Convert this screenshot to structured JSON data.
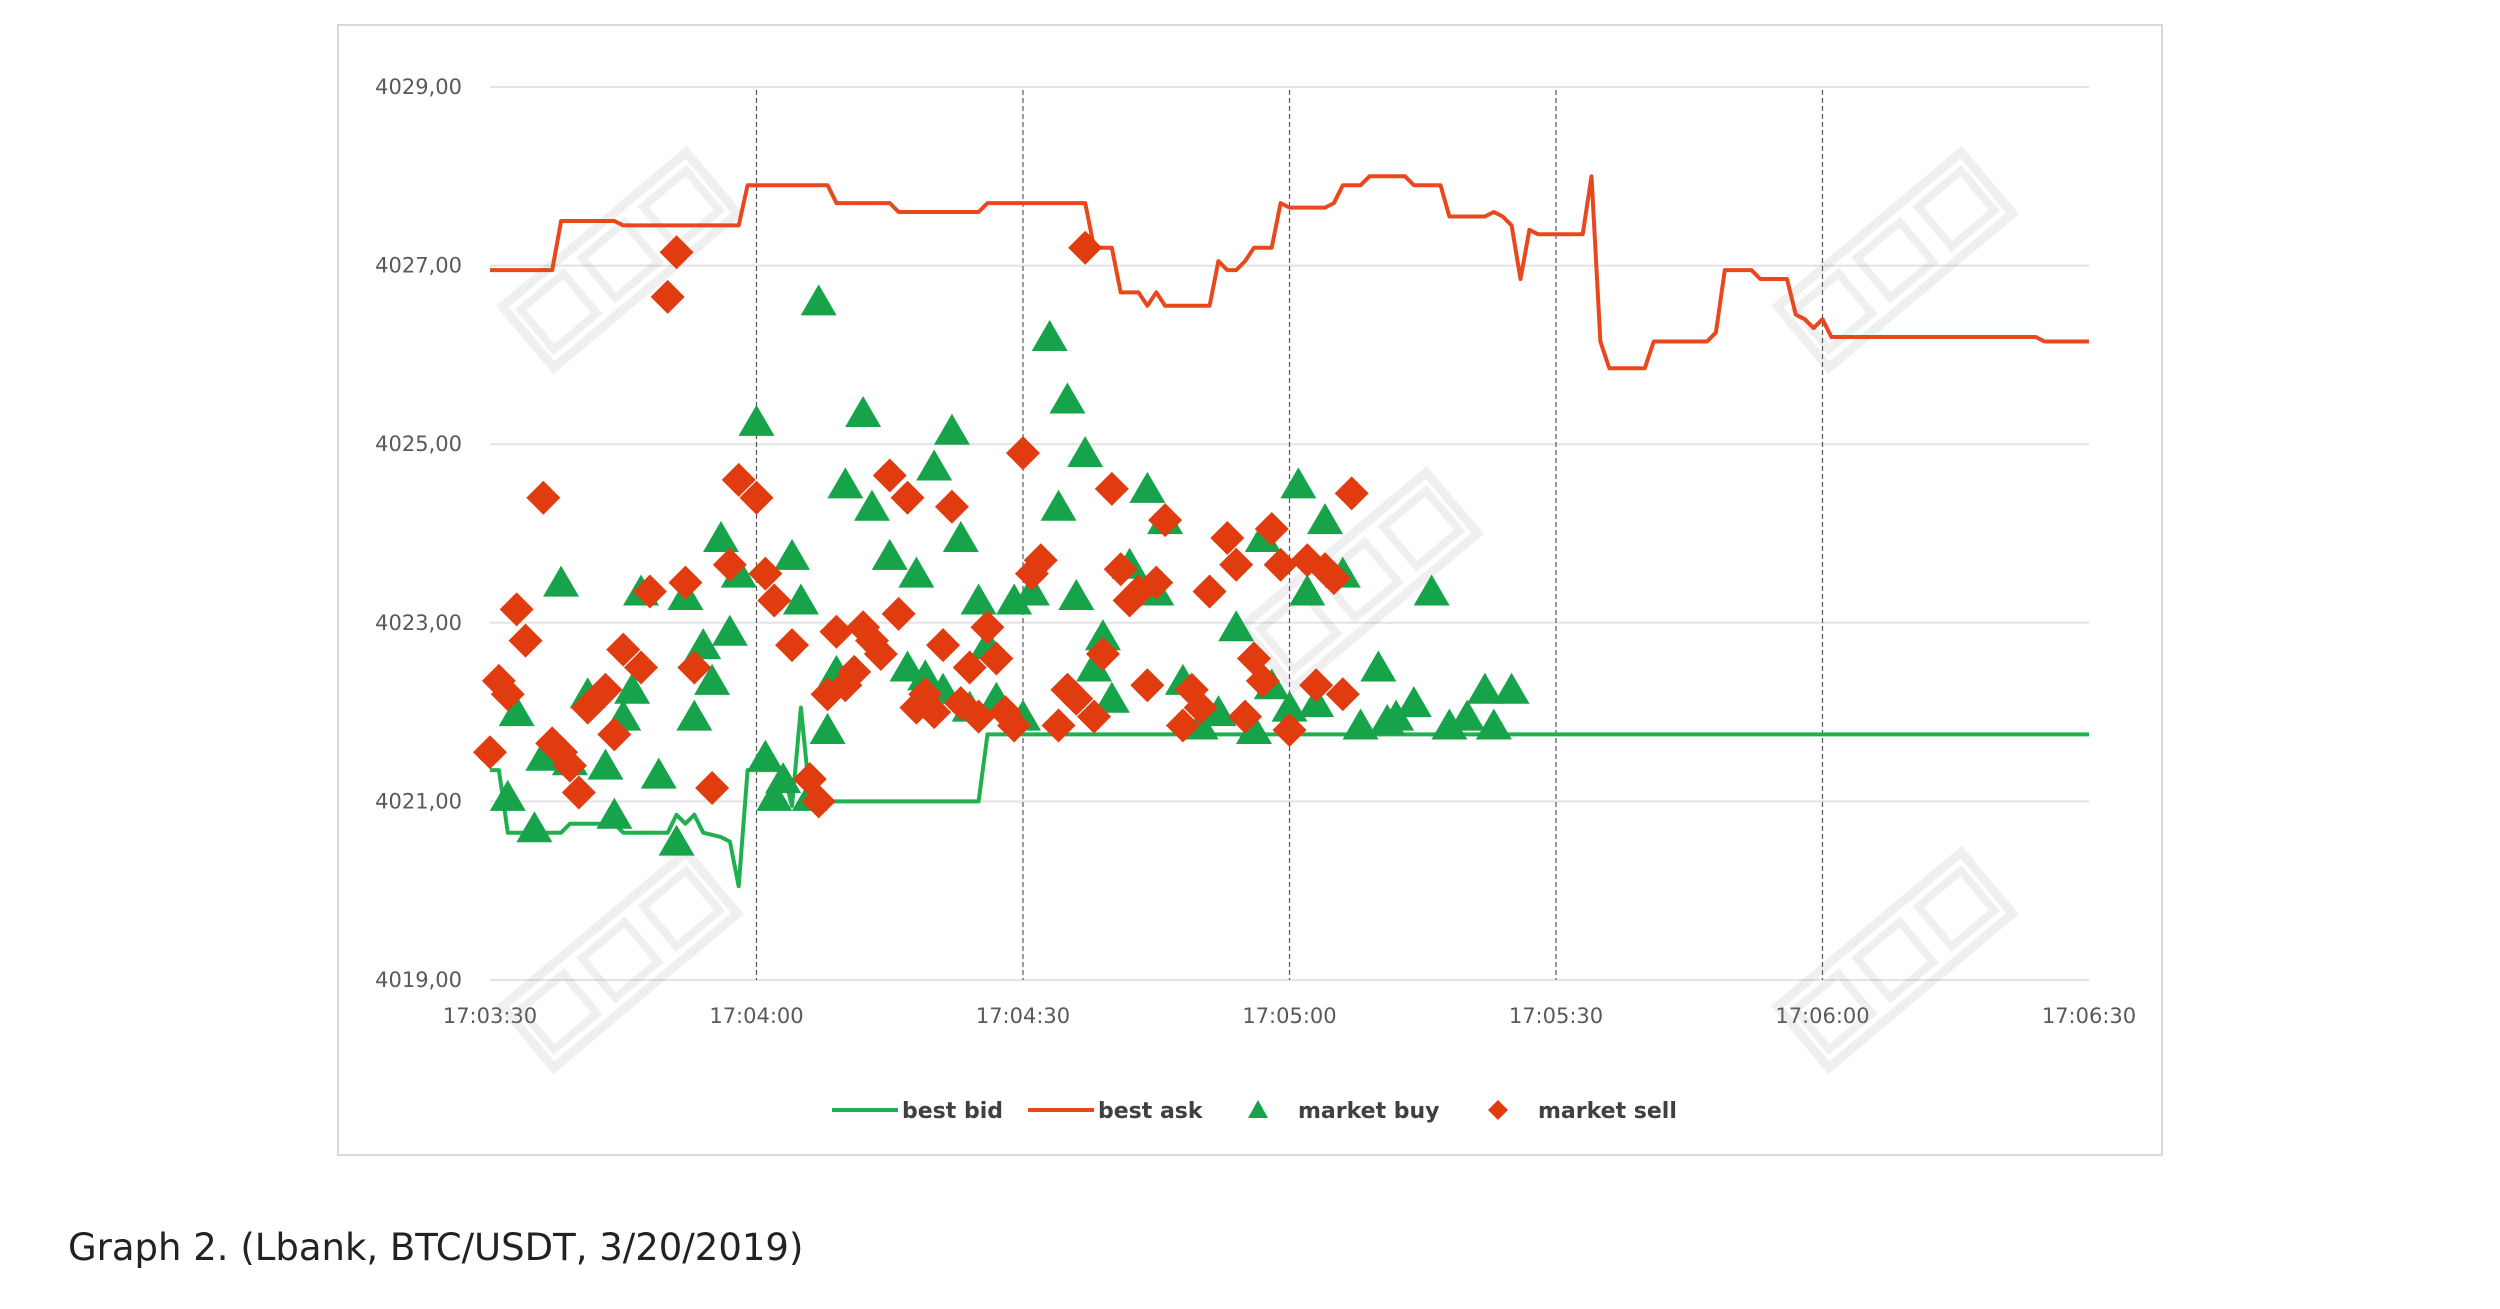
{
  "caption": "Graph 2. (Lbank, BTC/USDT, 3/20/2019)",
  "chart_data": {
    "type": "line",
    "title": "",
    "xlabel": "",
    "ylabel": "",
    "ylim": [
      4019,
      4029
    ],
    "y_ticks": [
      "4029,00",
      "4027,00",
      "4025,00",
      "4023,00",
      "4021,00",
      "4019,00"
    ],
    "y_tick_values": [
      4029,
      4027,
      4025,
      4023,
      4021,
      4019
    ],
    "xlim": [
      "17:03:30",
      "17:06:30"
    ],
    "x_ticks": [
      "17:03:30",
      "17:04:00",
      "17:04:30",
      "17:05:00",
      "17:05:30",
      "17:06:00",
      "17:06:30"
    ],
    "grid": "horizontal major gridlines, dashed vertical lines at 30 s ticks",
    "legend_position": "bottom",
    "colors": {
      "bid": "#1fb050",
      "ask": "#e8481c",
      "buy": "#16a34a",
      "sell": "#e03c10"
    },
    "series": [
      {
        "name": "best bid",
        "kind": "line",
        "color": "#1fb050",
        "points": [
          [
            "17:03:30",
            4021.35
          ],
          [
            "17:03:31",
            4021.35
          ],
          [
            "17:03:32",
            4020.65
          ],
          [
            "17:03:38",
            4020.65
          ],
          [
            "17:03:39",
            4020.75
          ],
          [
            "17:03:44",
            4020.75
          ],
          [
            "17:03:45",
            4020.65
          ],
          [
            "17:03:50",
            4020.65
          ],
          [
            "17:03:51",
            4020.85
          ],
          [
            "17:03:52",
            4020.75
          ],
          [
            "17:03:53",
            4020.85
          ],
          [
            "17:03:54",
            4020.65
          ],
          [
            "17:03:56",
            4020.6
          ],
          [
            "17:03:57",
            4020.55
          ],
          [
            "17:03:58",
            4020.05
          ],
          [
            "17:03:59",
            4021.35
          ],
          [
            "17:04:03",
            4021.35
          ],
          [
            "17:04:04",
            4020.95
          ],
          [
            "17:04:05",
            4022.05
          ],
          [
            "17:04:06",
            4021.05
          ],
          [
            "17:04:07",
            4021.0
          ],
          [
            "17:04:24",
            4021.0
          ],
          [
            "17:04:25",
            4021.0
          ],
          [
            "17:04:26",
            4021.75
          ],
          [
            "17:06:30",
            4021.75
          ]
        ]
      },
      {
        "name": "best ask",
        "kind": "line",
        "color": "#e8481c",
        "points": [
          [
            "17:03:30",
            4026.95
          ],
          [
            "17:03:37",
            4026.95
          ],
          [
            "17:03:38",
            4027.5
          ],
          [
            "17:03:44",
            4027.5
          ],
          [
            "17:03:45",
            4027.45
          ],
          [
            "17:03:58",
            4027.45
          ],
          [
            "17:03:59",
            4027.9
          ],
          [
            "17:04:08",
            4027.9
          ],
          [
            "17:04:09",
            4027.7
          ],
          [
            "17:04:15",
            4027.7
          ],
          [
            "17:04:16",
            4027.6
          ],
          [
            "17:04:25",
            4027.6
          ],
          [
            "17:04:26",
            4027.7
          ],
          [
            "17:04:37",
            4027.7
          ],
          [
            "17:04:38",
            4027.2
          ],
          [
            "17:04:40",
            4027.2
          ],
          [
            "17:04:41",
            4026.7
          ],
          [
            "17:04:43",
            4026.7
          ],
          [
            "17:04:44",
            4026.55
          ],
          [
            "17:04:45",
            4026.7
          ],
          [
            "17:04:46",
            4026.55
          ],
          [
            "17:04:51",
            4026.55
          ],
          [
            "17:04:52",
            4027.05
          ],
          [
            "17:04:53",
            4026.95
          ],
          [
            "17:04:54",
            4026.95
          ],
          [
            "17:04:55",
            4027.05
          ],
          [
            "17:04:56",
            4027.2
          ],
          [
            "17:04:58",
            4027.2
          ],
          [
            "17:04:59",
            4027.7
          ],
          [
            "17:05:00",
            4027.65
          ],
          [
            "17:05:04",
            4027.65
          ],
          [
            "17:05:05",
            4027.7
          ],
          [
            "17:05:06",
            4027.9
          ],
          [
            "17:05:08",
            4027.9
          ],
          [
            "17:05:09",
            4028.0
          ],
          [
            "17:05:13",
            4028.0
          ],
          [
            "17:05:14",
            4027.9
          ],
          [
            "17:05:17",
            4027.9
          ],
          [
            "17:05:18",
            4027.55
          ],
          [
            "17:05:22",
            4027.55
          ],
          [
            "17:05:23",
            4027.6
          ],
          [
            "17:05:24",
            4027.55
          ],
          [
            "17:05:25",
            4027.45
          ],
          [
            "17:05:26",
            4026.85
          ],
          [
            "17:05:27",
            4027.4
          ],
          [
            "17:05:28",
            4027.35
          ],
          [
            "17:05:33",
            4027.35
          ],
          [
            "17:05:34",
            4028.0
          ],
          [
            "17:05:35",
            4026.15
          ],
          [
            "17:05:36",
            4025.85
          ],
          [
            "17:05:40",
            4025.85
          ],
          [
            "17:05:41",
            4026.15
          ],
          [
            "17:05:47",
            4026.15
          ],
          [
            "17:05:48",
            4026.25
          ],
          [
            "17:05:49",
            4026.95
          ],
          [
            "17:05:52",
            4026.95
          ],
          [
            "17:05:53",
            4026.85
          ],
          [
            "17:05:56",
            4026.85
          ],
          [
            "17:05:57",
            4026.45
          ],
          [
            "17:05:58",
            4026.4
          ],
          [
            "17:05:59",
            4026.3
          ],
          [
            "17:06:00",
            4026.4
          ],
          [
            "17:06:01",
            4026.2
          ],
          [
            "17:06:24",
            4026.2
          ],
          [
            "17:06:25",
            4026.15
          ],
          [
            "17:06:30",
            4026.15
          ]
        ]
      },
      {
        "name": "market buy",
        "kind": "scatter",
        "marker": "triangle",
        "color": "#16a34a",
        "points": [
          [
            "17:03:32",
            4021.05
          ],
          [
            "17:03:33",
            4022.0
          ],
          [
            "17:03:35",
            4020.7
          ],
          [
            "17:03:36",
            4021.5
          ],
          [
            "17:03:38",
            4023.45
          ],
          [
            "17:03:39",
            4021.45
          ],
          [
            "17:03:41",
            4022.2
          ],
          [
            "17:03:43",
            4021.4
          ],
          [
            "17:03:44",
            4020.85
          ],
          [
            "17:03:45",
            4021.95
          ],
          [
            "17:03:46",
            4022.25
          ],
          [
            "17:03:47",
            4023.35
          ],
          [
            "17:03:49",
            4021.3
          ],
          [
            "17:03:51",
            4020.55
          ],
          [
            "17:03:52",
            4023.3
          ],
          [
            "17:03:53",
            4021.95
          ],
          [
            "17:03:54",
            4022.75
          ],
          [
            "17:03:55",
            4022.35
          ],
          [
            "17:03:56",
            4023.95
          ],
          [
            "17:03:57",
            4022.9
          ],
          [
            "17:03:58",
            4023.55
          ],
          [
            "17:04:00",
            4025.25
          ],
          [
            "17:04:01",
            4021.5
          ],
          [
            "17:04:02",
            4021.05
          ],
          [
            "17:04:03",
            4021.25
          ],
          [
            "17:04:04",
            4023.75
          ],
          [
            "17:04:05",
            4023.25
          ],
          [
            "17:04:06",
            4021.05
          ],
          [
            "17:04:07",
            4026.6
          ],
          [
            "17:04:08",
            4021.8
          ],
          [
            "17:04:09",
            4022.45
          ],
          [
            "17:04:10",
            4024.55
          ],
          [
            "17:04:12",
            4025.35
          ],
          [
            "17:04:13",
            4024.3
          ],
          [
            "17:04:15",
            4023.75
          ],
          [
            "17:04:17",
            4022.5
          ],
          [
            "17:04:18",
            4023.55
          ],
          [
            "17:04:19",
            4022.4
          ],
          [
            "17:04:20",
            4024.75
          ],
          [
            "17:04:21",
            4022.25
          ],
          [
            "17:04:22",
            4025.15
          ],
          [
            "17:04:23",
            4023.95
          ],
          [
            "17:04:24",
            4022.05
          ],
          [
            "17:04:25",
            4023.25
          ],
          [
            "17:04:26",
            4022.75
          ],
          [
            "17:04:27",
            4022.15
          ],
          [
            "17:04:29",
            4023.25
          ],
          [
            "17:04:30",
            4021.95
          ],
          [
            "17:04:31",
            4023.35
          ],
          [
            "17:04:33",
            4026.2
          ],
          [
            "17:04:34",
            4024.3
          ],
          [
            "17:04:35",
            4025.5
          ],
          [
            "17:04:36",
            4023.3
          ],
          [
            "17:04:37",
            4024.9
          ],
          [
            "17:04:38",
            4022.5
          ],
          [
            "17:04:39",
            4022.85
          ],
          [
            "17:04:40",
            4022.15
          ],
          [
            "17:04:42",
            4023.65
          ],
          [
            "17:04:44",
            4024.5
          ],
          [
            "17:04:45",
            4023.35
          ],
          [
            "17:04:46",
            4024.15
          ],
          [
            "17:04:48",
            4022.35
          ],
          [
            "17:04:50",
            4021.85
          ],
          [
            "17:04:52",
            4022.0
          ],
          [
            "17:04:54",
            4022.95
          ],
          [
            "17:04:56",
            4021.8
          ],
          [
            "17:04:57",
            4023.95
          ],
          [
            "17:04:58",
            4022.3
          ],
          [
            "17:05:00",
            4022.05
          ],
          [
            "17:05:01",
            4024.55
          ],
          [
            "17:05:02",
            4023.35
          ],
          [
            "17:05:03",
            4022.1
          ],
          [
            "17:05:04",
            4024.15
          ],
          [
            "17:05:06",
            4023.55
          ],
          [
            "17:05:08",
            4021.85
          ],
          [
            "17:05:10",
            4022.5
          ],
          [
            "17:05:11",
            4021.9
          ],
          [
            "17:05:12",
            4021.95
          ],
          [
            "17:05:14",
            4022.1
          ],
          [
            "17:05:16",
            4023.35
          ],
          [
            "17:05:18",
            4021.85
          ],
          [
            "17:05:20",
            4021.95
          ],
          [
            "17:05:22",
            4022.25
          ],
          [
            "17:05:23",
            4021.85
          ],
          [
            "17:05:25",
            4022.25
          ]
        ]
      },
      {
        "name": "market sell",
        "kind": "scatter",
        "marker": "diamond",
        "color": "#e03c10",
        "points": [
          [
            "17:03:30",
            4021.55
          ],
          [
            "17:03:31",
            4022.35
          ],
          [
            "17:03:32",
            4022.2
          ],
          [
            "17:03:33",
            4023.15
          ],
          [
            "17:03:34",
            4022.8
          ],
          [
            "17:03:36",
            4024.4
          ],
          [
            "17:03:37",
            4021.65
          ],
          [
            "17:03:38",
            4021.55
          ],
          [
            "17:03:39",
            4021.4
          ],
          [
            "17:03:40",
            4021.1
          ],
          [
            "17:03:41",
            4022.05
          ],
          [
            "17:03:42",
            4022.15
          ],
          [
            "17:03:43",
            4022.25
          ],
          [
            "17:03:44",
            4021.75
          ],
          [
            "17:03:45",
            4022.7
          ],
          [
            "17:03:47",
            4022.5
          ],
          [
            "17:03:48",
            4023.35
          ],
          [
            "17:03:50",
            4026.65
          ],
          [
            "17:03:51",
            4027.15
          ],
          [
            "17:03:52",
            4023.45
          ],
          [
            "17:03:53",
            4022.5
          ],
          [
            "17:03:55",
            4021.15
          ],
          [
            "17:03:57",
            4023.65
          ],
          [
            "17:03:58",
            4024.6
          ],
          [
            "17:04:00",
            4024.4
          ],
          [
            "17:04:01",
            4023.55
          ],
          [
            "17:04:02",
            4023.25
          ],
          [
            "17:04:04",
            4022.75
          ],
          [
            "17:04:06",
            4021.25
          ],
          [
            "17:04:07",
            4021.0
          ],
          [
            "17:04:08",
            4022.2
          ],
          [
            "17:04:09",
            4022.9
          ],
          [
            "17:04:10",
            4022.3
          ],
          [
            "17:04:11",
            4022.45
          ],
          [
            "17:04:12",
            4022.95
          ],
          [
            "17:04:13",
            4022.8
          ],
          [
            "17:04:14",
            4022.65
          ],
          [
            "17:04:15",
            4024.65
          ],
          [
            "17:04:16",
            4023.1
          ],
          [
            "17:04:17",
            4024.4
          ],
          [
            "17:04:18",
            4022.05
          ],
          [
            "17:04:19",
            4022.2
          ],
          [
            "17:04:20",
            4022.0
          ],
          [
            "17:04:21",
            4022.75
          ],
          [
            "17:04:22",
            4024.3
          ],
          [
            "17:04:23",
            4022.1
          ],
          [
            "17:04:24",
            4022.5
          ],
          [
            "17:04:25",
            4021.95
          ],
          [
            "17:04:26",
            4022.95
          ],
          [
            "17:04:27",
            4022.6
          ],
          [
            "17:04:28",
            4022.0
          ],
          [
            "17:04:29",
            4021.85
          ],
          [
            "17:04:30",
            4024.9
          ],
          [
            "17:04:31",
            4023.55
          ],
          [
            "17:04:32",
            4023.7
          ],
          [
            "17:04:34",
            4021.85
          ],
          [
            "17:04:35",
            4022.25
          ],
          [
            "17:04:36",
            4022.15
          ],
          [
            "17:04:37",
            4027.2
          ],
          [
            "17:04:38",
            4021.95
          ],
          [
            "17:04:39",
            4022.65
          ],
          [
            "17:04:40",
            4024.5
          ],
          [
            "17:04:41",
            4023.6
          ],
          [
            "17:04:42",
            4023.25
          ],
          [
            "17:04:43",
            4023.35
          ],
          [
            "17:04:44",
            4022.3
          ],
          [
            "17:04:45",
            4023.45
          ],
          [
            "17:04:46",
            4024.15
          ],
          [
            "17:04:48",
            4021.85
          ],
          [
            "17:04:49",
            4022.25
          ],
          [
            "17:04:50",
            4022.05
          ],
          [
            "17:04:51",
            4023.35
          ],
          [
            "17:04:53",
            4023.95
          ],
          [
            "17:04:54",
            4023.65
          ],
          [
            "17:04:55",
            4021.95
          ],
          [
            "17:04:56",
            4022.6
          ],
          [
            "17:04:57",
            4022.35
          ],
          [
            "17:04:58",
            4024.05
          ],
          [
            "17:04:59",
            4023.65
          ],
          [
            "17:05:00",
            4021.8
          ],
          [
            "17:05:02",
            4023.7
          ],
          [
            "17:05:03",
            4022.3
          ],
          [
            "17:05:04",
            4023.6
          ],
          [
            "17:05:05",
            4023.5
          ],
          [
            "17:05:06",
            4022.2
          ],
          [
            "17:05:07",
            4024.45
          ]
        ]
      }
    ]
  }
}
